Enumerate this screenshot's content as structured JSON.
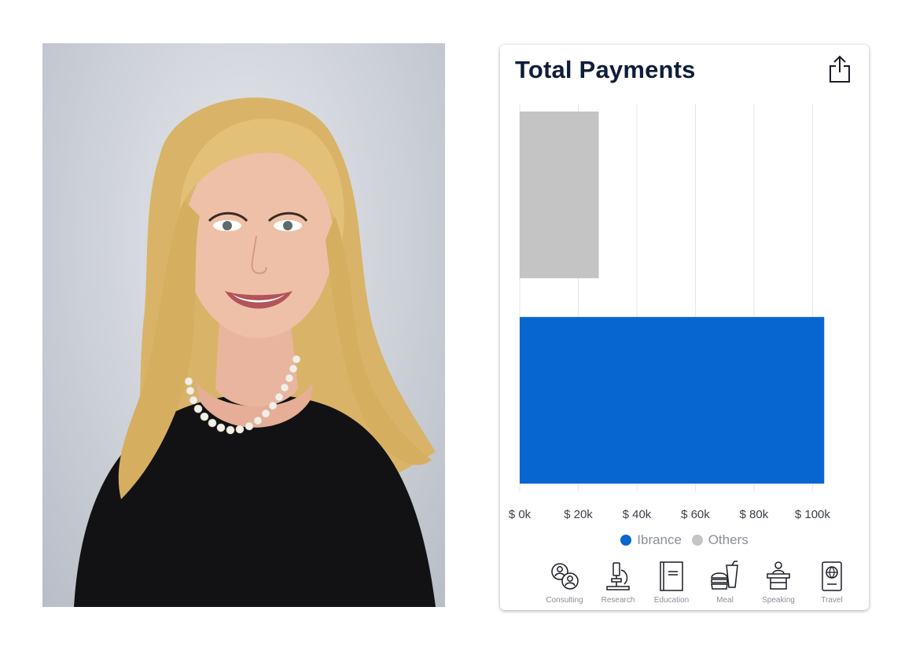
{
  "card": {
    "title": "Total Payments"
  },
  "icons": {
    "share": "share-icon"
  },
  "colors": {
    "ibrance": "#0866d0",
    "others": "#c4c4c4",
    "title": "#0f1d3a"
  },
  "chart_data": {
    "type": "bar",
    "orientation": "horizontal",
    "title": "Total Payments",
    "series": [
      {
        "name": "Others",
        "values": [
          27000
        ]
      },
      {
        "name": "Ibrance",
        "values": [
          104000
        ]
      }
    ],
    "xlim": [
      0,
      105000
    ],
    "x_ticks": [
      "$ 0k",
      "$ 20k",
      "$ 40k",
      "$ 60k",
      "$ 80k",
      "$ 100k"
    ],
    "x_tick_values": [
      0,
      20000,
      40000,
      60000,
      80000,
      100000
    ],
    "grid": true,
    "legend": [
      "Ibrance",
      "Others"
    ],
    "legend_position": "bottom"
  },
  "categories": [
    {
      "label": "Consulting",
      "icon": "consulting-icon"
    },
    {
      "label": "Research",
      "icon": "microscope-icon"
    },
    {
      "label": "Education",
      "icon": "book-icon"
    },
    {
      "label": "Meal",
      "icon": "meal-icon"
    },
    {
      "label": "Speaking",
      "icon": "podium-icon"
    },
    {
      "label": "Travel",
      "icon": "passport-icon"
    }
  ]
}
